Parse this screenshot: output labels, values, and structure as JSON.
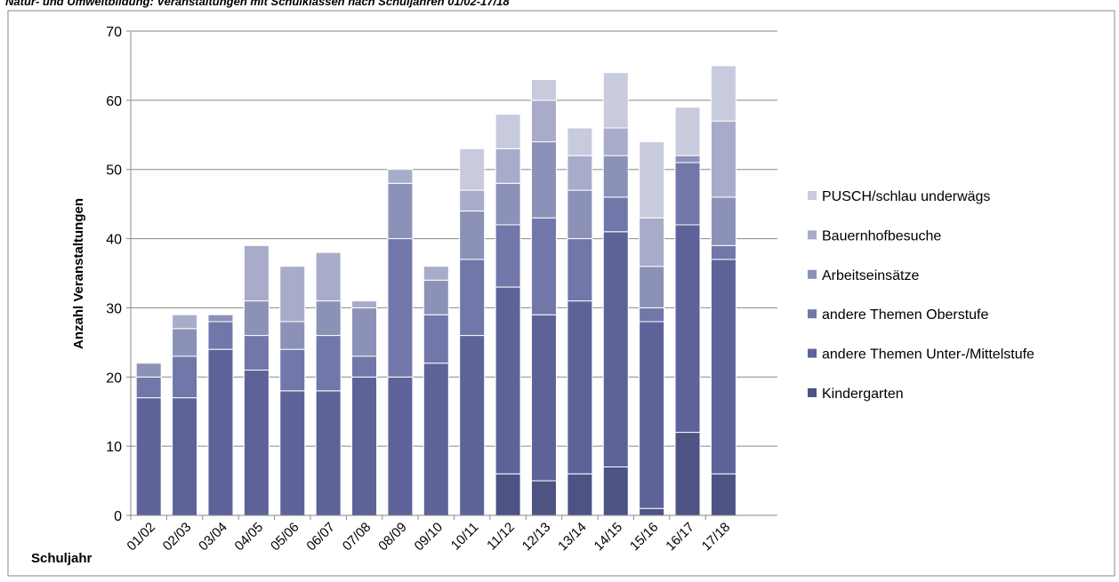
{
  "chart_data": {
    "type": "bar",
    "stacked": true,
    "title": "Natur- und Umweltbildung: Veranstaltungen mit Schulklassen nach Schuljahren 01/02-17/18",
    "x_label": "Schuljahr",
    "y_label": "Anzahl Veranstaltungen",
    "categories": [
      "01/02",
      "02/03",
      "03/04",
      "04/05",
      "05/06",
      "06/07",
      "07/08",
      "08/09",
      "09/10",
      "10/11",
      "11/12",
      "12/13",
      "13/14",
      "14/15",
      "15/16",
      "16/17",
      "17/18"
    ],
    "series": [
      {
        "name": "Kindergarten",
        "color": "#4d5383",
        "values": [
          0,
          0,
          0,
          0,
          0,
          0,
          0,
          0,
          0,
          0,
          6,
          5,
          6,
          7,
          1,
          12,
          6
        ]
      },
      {
        "name": "andere Themen Unter-/Mittelstufe",
        "color": "#5d6399",
        "values": [
          17,
          17,
          24,
          21,
          18,
          18,
          20,
          20,
          22,
          26,
          27,
          24,
          25,
          34,
          27,
          30,
          31
        ]
      },
      {
        "name": "andere Themen Oberstufe",
        "color": "#7177a9",
        "values": [
          3,
          6,
          4,
          5,
          6,
          8,
          3,
          20,
          7,
          11,
          9,
          14,
          9,
          5,
          2,
          9,
          2
        ]
      },
      {
        "name": "Arbeitseinsätze",
        "color": "#8c91b8",
        "values": [
          2,
          4,
          1,
          5,
          4,
          5,
          7,
          8,
          5,
          7,
          6,
          11,
          7,
          6,
          6,
          1,
          7
        ]
      },
      {
        "name": "Bauernhofbesuche",
        "color": "#a8acca",
        "values": [
          0,
          2,
          0,
          8,
          8,
          7,
          1,
          2,
          2,
          3,
          5,
          6,
          5,
          4,
          7,
          0,
          11
        ]
      },
      {
        "name": "PUSCH/schlau underwägs",
        "color": "#c8cbde",
        "values": [
          0,
          0,
          0,
          0,
          0,
          0,
          0,
          0,
          0,
          6,
          5,
          3,
          4,
          8,
          11,
          7,
          8
        ]
      }
    ],
    "ylim": [
      0,
      70
    ],
    "yticks": [
      0,
      10,
      20,
      30,
      40,
      50,
      60,
      70
    ],
    "grid": true,
    "legend": "right"
  }
}
